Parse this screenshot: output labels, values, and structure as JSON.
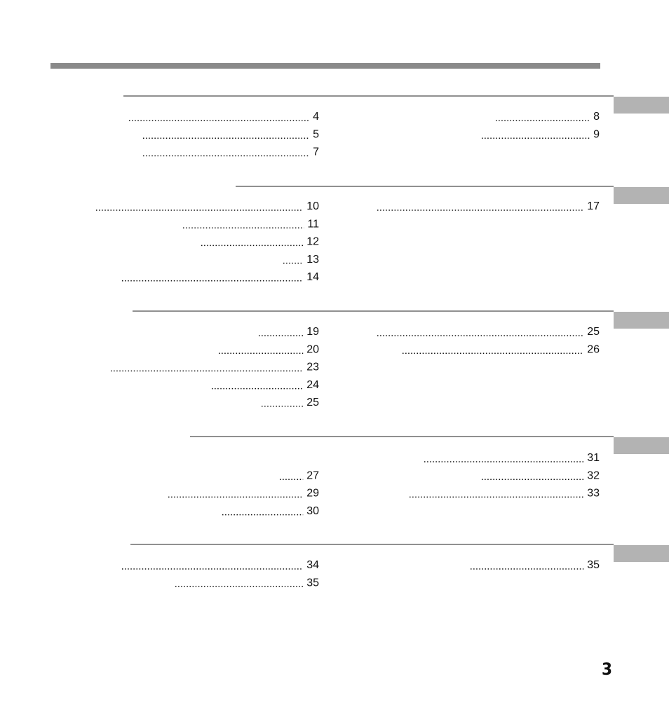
{
  "sections": [
    {
      "left": [
        "4",
        "5",
        "7"
      ],
      "right": [
        "8",
        "9"
      ]
    },
    {
      "left": [
        "10",
        "11",
        "12",
        "13",
        "14"
      ],
      "right": [
        "17"
      ]
    },
    {
      "left": [
        "19",
        "20",
        "23",
        "24",
        "25"
      ],
      "right": [
        "25",
        "26"
      ]
    },
    {
      "left": [
        null,
        "27",
        "29",
        "30"
      ],
      "right": [
        "31",
        "32",
        "33"
      ]
    },
    {
      "left": [
        "34",
        "35"
      ],
      "right": [
        "35"
      ]
    }
  ],
  "page_number": "3"
}
